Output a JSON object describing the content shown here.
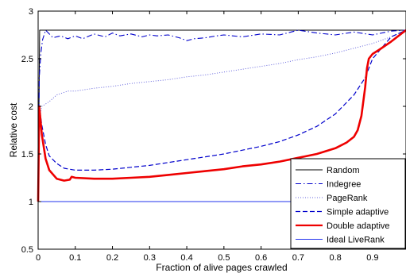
{
  "chart_data": {
    "type": "line",
    "xlabel": "Fraction of alive pages crawled",
    "ylabel": "Relative cost",
    "xlim": [
      0,
      0.99
    ],
    "ylim": [
      0.5,
      3
    ],
    "xticks": [
      "0",
      "0.1",
      "0.2",
      "0.3",
      "0.4",
      "0.5",
      "0.6",
      "0.7",
      "0.8",
      "0.9"
    ],
    "xtick_values": [
      0,
      0.1,
      0.2,
      0.3,
      0.4,
      0.5,
      0.6,
      0.7,
      0.8,
      0.9
    ],
    "yticks": [
      "0.5",
      "1",
      "1.5",
      "2",
      "2.5",
      "3"
    ],
    "ytick_values": [
      0.5,
      1,
      1.5,
      2,
      2.5,
      3
    ],
    "grid": false,
    "legend_position": "bottom-right",
    "series": [
      {
        "name": "Random",
        "color": "#000000",
        "style": "solid",
        "x": [
          0,
          0.004,
          0.01,
          0.99
        ],
        "y": [
          1.0,
          2.8,
          2.8,
          2.8
        ]
      },
      {
        "name": "Indegree",
        "color": "#0000cc",
        "style": "dashdot",
        "x": [
          0,
          0.003,
          0.007,
          0.012,
          0.02,
          0.04,
          0.06,
          0.08,
          0.1,
          0.12,
          0.15,
          0.18,
          0.2,
          0.22,
          0.25,
          0.28,
          0.3,
          0.32,
          0.35,
          0.38,
          0.4,
          0.42,
          0.45,
          0.48,
          0.5,
          0.55,
          0.6,
          0.65,
          0.7,
          0.75,
          0.8,
          0.85,
          0.9,
          0.95,
          0.99
        ],
        "y": [
          1.0,
          2.3,
          2.55,
          2.7,
          2.8,
          2.72,
          2.74,
          2.71,
          2.74,
          2.71,
          2.76,
          2.73,
          2.77,
          2.74,
          2.76,
          2.73,
          2.75,
          2.74,
          2.75,
          2.72,
          2.69,
          2.71,
          2.72,
          2.74,
          2.75,
          2.73,
          2.76,
          2.75,
          2.8,
          2.77,
          2.75,
          2.78,
          2.75,
          2.79,
          2.8
        ]
      },
      {
        "name": "PageRank",
        "color": "#6666dd",
        "style": "dotted",
        "x": [
          0,
          0.003,
          0.01,
          0.03,
          0.05,
          0.08,
          0.1,
          0.15,
          0.2,
          0.25,
          0.3,
          0.35,
          0.4,
          0.45,
          0.5,
          0.55,
          0.6,
          0.65,
          0.7,
          0.75,
          0.8,
          0.85,
          0.9,
          0.95,
          0.99
        ],
        "y": [
          1.0,
          1.85,
          2.0,
          2.05,
          2.12,
          2.16,
          2.16,
          2.19,
          2.21,
          2.24,
          2.26,
          2.28,
          2.31,
          2.33,
          2.36,
          2.39,
          2.42,
          2.45,
          2.49,
          2.52,
          2.56,
          2.61,
          2.66,
          2.73,
          2.8
        ]
      },
      {
        "name": "Simple adaptive",
        "color": "#0000cc",
        "style": "dashed",
        "x": [
          0,
          0.003,
          0.01,
          0.02,
          0.03,
          0.05,
          0.07,
          0.1,
          0.15,
          0.2,
          0.25,
          0.3,
          0.35,
          0.4,
          0.45,
          0.5,
          0.55,
          0.6,
          0.65,
          0.7,
          0.75,
          0.8,
          0.85,
          0.88,
          0.9,
          0.95,
          0.99
        ],
        "y": [
          1.0,
          2.0,
          1.8,
          1.6,
          1.48,
          1.4,
          1.35,
          1.33,
          1.33,
          1.34,
          1.36,
          1.38,
          1.41,
          1.44,
          1.47,
          1.5,
          1.54,
          1.58,
          1.63,
          1.7,
          1.79,
          1.92,
          2.12,
          2.3,
          2.5,
          2.73,
          2.8
        ]
      },
      {
        "name": "Double adaptive",
        "color": "#ee0000",
        "style": "solid",
        "x": [
          0,
          0.003,
          0.01,
          0.02,
          0.03,
          0.05,
          0.07,
          0.085,
          0.09,
          0.1,
          0.15,
          0.2,
          0.25,
          0.3,
          0.35,
          0.4,
          0.45,
          0.5,
          0.55,
          0.6,
          0.65,
          0.7,
          0.75,
          0.8,
          0.83,
          0.85,
          0.86,
          0.87,
          0.88,
          0.885,
          0.89,
          0.9,
          0.92,
          0.95,
          0.99
        ],
        "y": [
          1.0,
          2.0,
          1.7,
          1.45,
          1.33,
          1.24,
          1.22,
          1.23,
          1.26,
          1.25,
          1.24,
          1.24,
          1.25,
          1.26,
          1.28,
          1.3,
          1.32,
          1.34,
          1.37,
          1.39,
          1.42,
          1.46,
          1.5,
          1.56,
          1.62,
          1.68,
          1.75,
          1.9,
          2.2,
          2.4,
          2.5,
          2.55,
          2.6,
          2.68,
          2.8
        ]
      },
      {
        "name": "Ideal LiveRank",
        "color": "#2233ee",
        "style": "solid",
        "x": [
          0,
          0.99
        ],
        "y": [
          1.0,
          1.0
        ]
      }
    ]
  }
}
